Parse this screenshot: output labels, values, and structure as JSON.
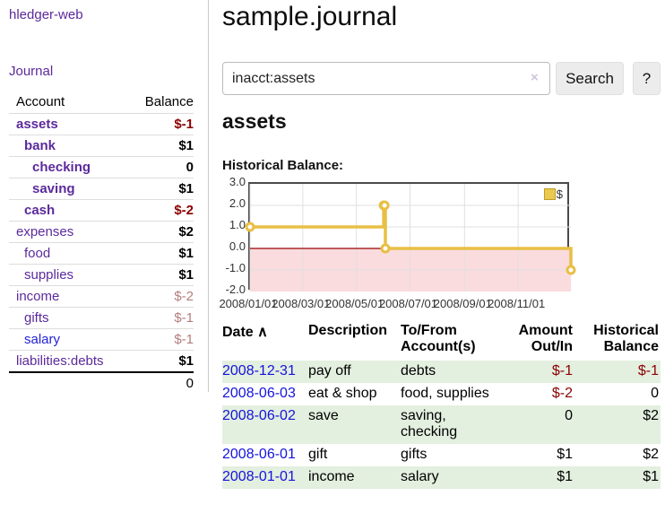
{
  "colors": {
    "purple": "#5b2a9b",
    "link_blue": "#1414dd",
    "negative_red": "#8b0000",
    "pale_negative": "#b57c7c",
    "row_green": "#e3efdf",
    "chart_line_gold": "#e8bf45",
    "chart_negative_fill": "#fadbde",
    "chart_zero_line": "#990000"
  },
  "sidebar": {
    "brand": "hledger-web",
    "nav": "Journal",
    "table": {
      "headers": [
        "Account",
        "Balance"
      ],
      "rows": [
        {
          "name": "assets",
          "balance": "$-1",
          "depth": 1,
          "bold": true,
          "neg": "strong"
        },
        {
          "name": "bank",
          "balance": "$1",
          "depth": 2,
          "bold": true
        },
        {
          "name": "checking",
          "balance": "0",
          "depth": 3,
          "bold": true
        },
        {
          "name": "saving",
          "balance": "$1",
          "depth": 3,
          "bold": true
        },
        {
          "name": "cash",
          "balance": "$-2",
          "depth": 2,
          "bold": true,
          "neg": "strong"
        },
        {
          "name": "expenses",
          "balance": "$2",
          "depth": 1
        },
        {
          "name": "food",
          "balance": "$1",
          "depth": 2
        },
        {
          "name": "supplies",
          "balance": "$1",
          "depth": 2
        },
        {
          "name": "income",
          "balance": "$-2",
          "depth": 1,
          "neg": "pale"
        },
        {
          "name": "gifts",
          "balance": "$-1",
          "depth": 2,
          "neg": "pale"
        },
        {
          "name": "salary",
          "balance": "$-1",
          "depth": 2,
          "neg": "pale",
          "name_color": "blue"
        },
        {
          "name": "liabilities:debts",
          "balance": "$1",
          "depth": 1
        }
      ],
      "total": "0"
    }
  },
  "main": {
    "title": "sample.journal",
    "search": {
      "value": "inacct:assets",
      "clear_icon": "×",
      "button": "Search",
      "help_button": "?"
    },
    "account_heading": "assets",
    "register": {
      "sort_icon": "∧",
      "headers": [
        {
          "lines": [
            "Date"
          ],
          "sort": true,
          "align": "left"
        },
        {
          "lines": [
            "Description"
          ],
          "align": "left"
        },
        {
          "lines": [
            "To/From",
            "Account(s)"
          ],
          "align": "left"
        },
        {
          "lines": [
            "Amount",
            "Out/In"
          ],
          "align": "right"
        },
        {
          "lines": [
            "Historical",
            "Balance"
          ],
          "align": "right"
        }
      ],
      "rows": [
        {
          "date": "2008-12-31",
          "description": "pay off",
          "accounts": "debts",
          "amount": "$-1",
          "amount_neg": true,
          "balance": "$-1",
          "balance_neg": true
        },
        {
          "date": "2008-06-03",
          "description": "eat & shop",
          "accounts": "food, supplies",
          "amount": "$-2",
          "amount_neg": true,
          "balance": "0"
        },
        {
          "date": "2008-06-02",
          "description": "save",
          "accounts": "saving, checking",
          "amount": "0",
          "balance": "$2"
        },
        {
          "date": "2008-06-01",
          "description": "gift",
          "accounts": "gifts",
          "amount": "$1",
          "balance": "$2"
        },
        {
          "date": "2008-01-01",
          "description": "income",
          "accounts": "salary",
          "amount": "$1",
          "balance": "$1"
        }
      ]
    }
  },
  "chart_data": {
    "type": "line",
    "title": "Historical Balance:",
    "step": true,
    "series": [
      {
        "name": "$",
        "points": [
          [
            "2008-01-01",
            1
          ],
          [
            "2008-06-01",
            2
          ],
          [
            "2008-06-02",
            2
          ],
          [
            "2008-06-03",
            0
          ],
          [
            "2008-12-31",
            -1
          ]
        ]
      }
    ],
    "xlim": [
      "2008-01-01",
      "2008-12-31"
    ],
    "ylim": [
      -2,
      3
    ],
    "x_tick_labels": [
      "2008/01/01",
      "2008/03/01",
      "2008/05/01",
      "2008/07/01",
      "2008/09/01",
      "2008/11/01"
    ],
    "y_tick_labels": [
      "3.0",
      "2.0",
      "1.0",
      "0.0",
      "-1.0",
      "-2.0"
    ],
    "grid": true,
    "legend_position": "top-right",
    "negative_region_shaded": true
  }
}
